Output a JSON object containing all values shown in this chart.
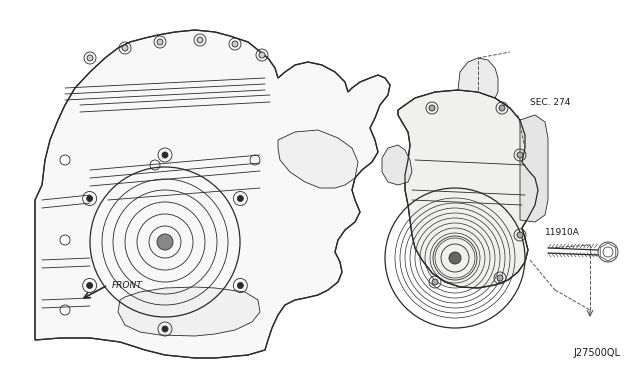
{
  "background_color": "#f5f5f0",
  "figure_width": 6.4,
  "figure_height": 3.72,
  "dpi": 100,
  "label_sec274": "SEC. 274",
  "label_11910a": "11910A",
  "label_front": "FRONT",
  "label_part_number": "J27500QL",
  "line_color": "#2a2a2a",
  "dashed_color": "#555555",
  "text_color": "#1a1a1a",
  "font_size_labels": 6.5,
  "font_size_part_number": 7.0,
  "font_size_front": 6.5,
  "lw_main": 0.6,
  "lw_thick": 0.9,
  "lw_thin": 0.4
}
